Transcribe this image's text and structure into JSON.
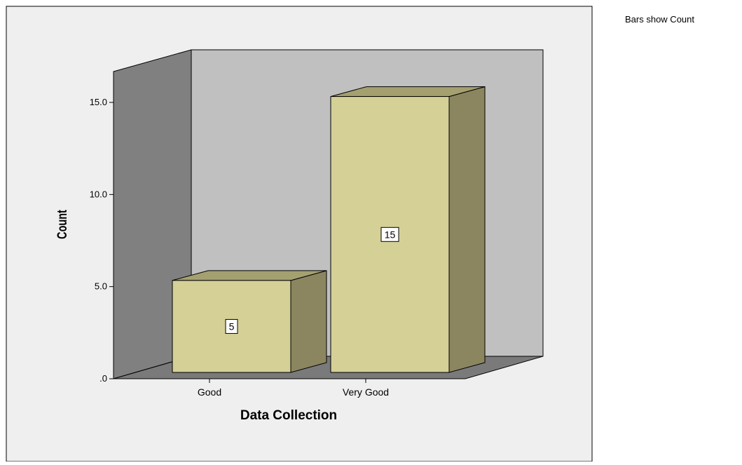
{
  "note": "Bars show Count",
  "colors": {
    "outer_bg": "#ffffff",
    "plot_bg": "#efefef",
    "back_wall": "#c0c0c0",
    "side_wall": "#808080",
    "floor": "#7a7a7a",
    "bar_front": "#d5d096",
    "bar_side": "#8b8660",
    "bar_top": "#a5a070",
    "outline": "#000000"
  },
  "chart_data": {
    "type": "bar",
    "style": "3d",
    "categories": [
      "Good",
      "Very Good"
    ],
    "values": [
      5,
      15
    ],
    "data_labels": [
      "5",
      "15"
    ],
    "xlabel": "Data Collection",
    "ylabel": "Count",
    "ylim": [
      0,
      16.5
    ],
    "yticks": [
      0,
      5,
      10,
      15
    ],
    "ytick_labels": [
      ".0",
      "5.0",
      "10.0",
      "15.0"
    ],
    "grid": false,
    "legend": "none"
  }
}
